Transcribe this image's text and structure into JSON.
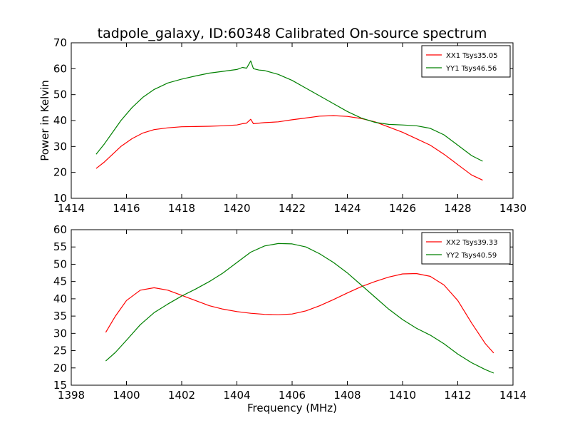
{
  "figure": {
    "title": "tadpole_galaxy, ID:60348 Calibrated On-source spectrum"
  },
  "chart_data": [
    {
      "type": "line",
      "title": "tadpole_galaxy, ID:60348 Calibrated On-source spectrum",
      "xlabel": "",
      "ylabel": "Power in Kelvin",
      "xlim": [
        1414,
        1430
      ],
      "ylim": [
        10,
        70
      ],
      "xticks": [
        1414,
        1416,
        1418,
        1420,
        1422,
        1424,
        1426,
        1428,
        1430
      ],
      "yticks": [
        10,
        20,
        30,
        40,
        50,
        60,
        70
      ],
      "grid": false,
      "legend_position": "top-right",
      "series": [
        {
          "name": "XX1 Tsys35.05",
          "color": "#ff0000",
          "x": [
            1414.9,
            1415.2,
            1415.5,
            1415.8,
            1416.2,
            1416.6,
            1417.0,
            1417.5,
            1418.0,
            1418.5,
            1419.0,
            1419.5,
            1420.0,
            1420.2,
            1420.35,
            1420.5,
            1420.6,
            1420.8,
            1421.0,
            1421.5,
            1422.0,
            1422.5,
            1423.0,
            1423.5,
            1424.0,
            1424.5,
            1425.0,
            1425.5,
            1426.0,
            1426.5,
            1427.0,
            1427.5,
            1428.0,
            1428.5,
            1428.9
          ],
          "y": [
            21.5,
            24.0,
            27.0,
            30.0,
            33.0,
            35.2,
            36.5,
            37.2,
            37.6,
            37.7,
            37.8,
            38.0,
            38.3,
            38.8,
            39.0,
            40.5,
            38.8,
            39.0,
            39.2,
            39.5,
            40.3,
            41.0,
            41.7,
            41.9,
            41.6,
            40.8,
            39.5,
            37.5,
            35.5,
            33.0,
            30.5,
            27.0,
            23.0,
            19.0,
            17.0
          ]
        },
        {
          "name": "YY1 Tsys46.56",
          "color": "#008000",
          "x": [
            1414.9,
            1415.2,
            1415.5,
            1415.8,
            1416.2,
            1416.6,
            1417.0,
            1417.5,
            1418.0,
            1418.5,
            1419.0,
            1419.5,
            1420.0,
            1420.2,
            1420.35,
            1420.5,
            1420.6,
            1420.8,
            1421.0,
            1421.5,
            1422.0,
            1422.5,
            1423.0,
            1423.5,
            1424.0,
            1424.5,
            1425.0,
            1425.5,
            1426.0,
            1426.5,
            1427.0,
            1427.5,
            1428.0,
            1428.5,
            1428.9
          ],
          "y": [
            27.0,
            31.0,
            35.5,
            40.0,
            45.0,
            49.0,
            52.0,
            54.5,
            56.0,
            57.2,
            58.3,
            59.0,
            59.7,
            60.5,
            60.2,
            63.0,
            60.0,
            59.5,
            59.3,
            57.8,
            55.5,
            52.5,
            49.5,
            46.5,
            43.5,
            41.0,
            39.3,
            38.5,
            38.3,
            38.0,
            37.0,
            34.5,
            30.5,
            26.5,
            24.3
          ]
        }
      ]
    },
    {
      "type": "line",
      "title": "",
      "xlabel": "Frequency (MHz)",
      "ylabel": "",
      "xlim": [
        1398,
        1414
      ],
      "ylim": [
        15,
        60
      ],
      "xticks": [
        1398,
        1400,
        1402,
        1404,
        1406,
        1408,
        1410,
        1412,
        1414
      ],
      "yticks": [
        15,
        20,
        25,
        30,
        35,
        40,
        45,
        50,
        55,
        60
      ],
      "grid": false,
      "legend_position": "top-right",
      "series": [
        {
          "name": "XX2 Tsys39.33",
          "color": "#ff0000",
          "x": [
            1399.25,
            1399.6,
            1400.0,
            1400.5,
            1401.0,
            1401.5,
            1402.0,
            1402.5,
            1403.0,
            1403.5,
            1404.0,
            1404.5,
            1405.0,
            1405.5,
            1406.0,
            1406.5,
            1407.0,
            1407.5,
            1408.0,
            1408.5,
            1409.0,
            1409.5,
            1410.0,
            1410.5,
            1411.0,
            1411.5,
            1412.0,
            1412.5,
            1413.0,
            1413.3
          ],
          "y": [
            30.3,
            35.0,
            39.5,
            42.5,
            43.2,
            42.5,
            41.0,
            39.5,
            38.0,
            37.0,
            36.3,
            35.8,
            35.5,
            35.4,
            35.6,
            36.5,
            38.0,
            39.8,
            41.7,
            43.5,
            45.0,
            46.3,
            47.2,
            47.3,
            46.5,
            44.0,
            39.5,
            33.0,
            27.0,
            24.3
          ]
        },
        {
          "name": "YY2 Tsys40.59",
          "color": "#008000",
          "x": [
            1399.25,
            1399.6,
            1400.0,
            1400.5,
            1401.0,
            1401.5,
            1402.0,
            1402.5,
            1403.0,
            1403.5,
            1404.0,
            1404.5,
            1405.0,
            1405.5,
            1406.0,
            1406.5,
            1407.0,
            1407.5,
            1408.0,
            1408.5,
            1409.0,
            1409.5,
            1410.0,
            1410.5,
            1411.0,
            1411.5,
            1412.0,
            1412.5,
            1413.0,
            1413.3
          ],
          "y": [
            22.0,
            24.5,
            28.0,
            32.5,
            36.0,
            38.5,
            40.8,
            42.8,
            45.0,
            47.5,
            50.5,
            53.5,
            55.3,
            56.0,
            55.9,
            55.0,
            53.0,
            50.5,
            47.5,
            44.0,
            40.5,
            37.0,
            34.0,
            31.5,
            29.5,
            27.0,
            24.0,
            21.5,
            19.5,
            18.5
          ]
        }
      ]
    }
  ]
}
